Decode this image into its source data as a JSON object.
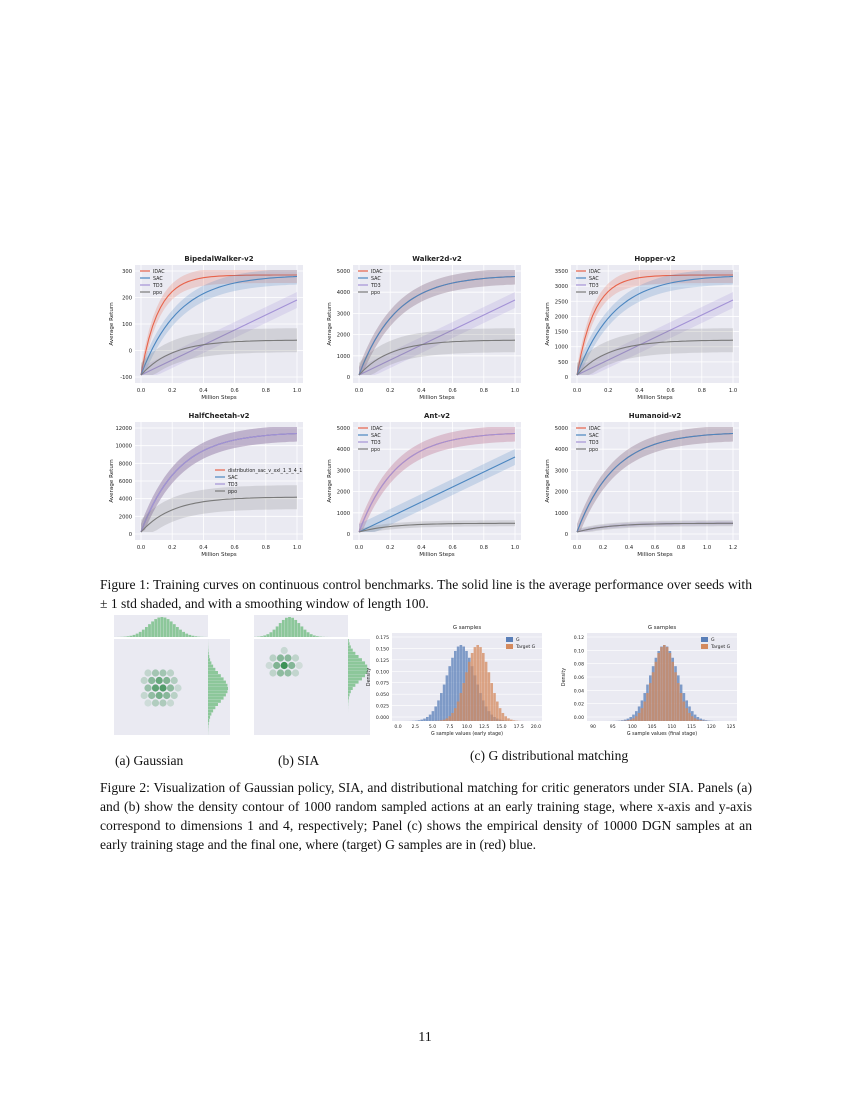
{
  "figure1": {
    "panels": [
      {
        "title": "BipedalWalker-v2",
        "yticks": [
          "300",
          "200",
          "100",
          "0",
          "-100"
        ],
        "xticks": [
          "0.0",
          "0.2",
          "0.4",
          "0.6",
          "0.8",
          "1.0"
        ],
        "ylabel": "Average Return",
        "xlabel": "Million Steps",
        "legend": [
          "IDAC",
          "SAC",
          "TD3",
          "ppo"
        ]
      },
      {
        "title": "Walker2d-v2",
        "yticks": [
          "5000",
          "4000",
          "3000",
          "2000",
          "1000",
          "0"
        ],
        "xticks": [
          "0.0",
          "0.2",
          "0.4",
          "0.6",
          "0.8",
          "1.0"
        ],
        "ylabel": "Average Return",
        "xlabel": "Million Steps",
        "legend": [
          "IDAC",
          "SAC",
          "TD3",
          "ppo"
        ]
      },
      {
        "title": "Hopper-v2",
        "yticks": [
          "3500",
          "3000",
          "2500",
          "2000",
          "1500",
          "1000",
          "500",
          "0"
        ],
        "xticks": [
          "0.0",
          "0.2",
          "0.4",
          "0.6",
          "0.8",
          "1.0"
        ],
        "ylabel": "Average Return",
        "xlabel": "Million Steps",
        "legend": [
          "IDAC",
          "SAC",
          "TD3",
          "ppo"
        ]
      },
      {
        "title": "HalfCheetah-v2",
        "yticks": [
          "12000",
          "10000",
          "8000",
          "6000",
          "4000",
          "2000",
          "0"
        ],
        "xticks": [
          "0.0",
          "0.2",
          "0.4",
          "0.6",
          "0.8",
          "1.0"
        ],
        "ylabel": "Average Return",
        "xlabel": "Million Steps",
        "legend": [
          "distribution_sac_v_xxl_1_3_4_1",
          "SAC",
          "TD3",
          "ppo"
        ]
      },
      {
        "title": "Ant-v2",
        "yticks": [
          "5000",
          "4000",
          "3000",
          "2000",
          "1000",
          "0"
        ],
        "xticks": [
          "0.0",
          "0.2",
          "0.4",
          "0.6",
          "0.8",
          "1.0"
        ],
        "ylabel": "Average Return",
        "xlabel": "Million Steps",
        "legend": [
          "IDAC",
          "SAC",
          "TD3",
          "ppo"
        ]
      },
      {
        "title": "Humanoid-v2",
        "yticks": [
          "5000",
          "4000",
          "3000",
          "2000",
          "1000",
          "0"
        ],
        "xticks": [
          "0.0",
          "0.2",
          "0.4",
          "0.6",
          "0.8",
          "1.0",
          "1.2"
        ],
        "ylabel": "Average Return",
        "xlabel": "Million Steps",
        "legend": [
          "IDAC",
          "SAC",
          "TD3",
          "ppo"
        ]
      }
    ],
    "caption": "Figure 1: Training curves on continuous control benchmarks. The solid line is the average performance over seeds with ± 1 std shaded, and with a smoothing window of length 100."
  },
  "figure2": {
    "sub_a": "(a) Gaussian",
    "sub_b": "(b) SIA",
    "sub_c": "(c) G distributional matching",
    "hist1": {
      "title": "G samples",
      "xlabel": "G sample values (early stage)",
      "ylabel": "Density",
      "xticks": [
        "0.0",
        "2.5",
        "5.0",
        "7.5",
        "10.0",
        "12.5",
        "15.0",
        "17.5",
        "20.0"
      ],
      "yticks": [
        "0.175",
        "0.150",
        "0.125",
        "0.100",
        "0.075",
        "0.050",
        "0.025",
        "0.000"
      ],
      "legend": [
        "G",
        "Target G"
      ]
    },
    "hist2": {
      "title": "G samples",
      "xlabel": "G sample values (final stage)",
      "ylabel": "Density",
      "xticks": [
        "90",
        "95",
        "100",
        "105",
        "110",
        "115",
        "120",
        "125"
      ],
      "yticks": [
        "0.12",
        "0.10",
        "0.08",
        "0.06",
        "0.04",
        "0.02",
        "0.00"
      ],
      "legend": [
        "G",
        "Target G"
      ]
    },
    "caption": "Figure 2: Visualization of Gaussian policy, SIA, and distributional matching for critic generators under SIA. Panels (a) and (b) show the density contour of 1000 random sampled actions at an early training stage, where x-axis and y-axis correspond to dimensions 1 and 4, respectively; Panel (c) shows the empirical density of 10000 DGN samples at an early training stage and the final one, where (target) G samples are in (red) blue."
  },
  "page_number": "11",
  "colors": {
    "idac": "#e8634a",
    "sac": "#4b86c0",
    "td3": "#a392d6",
    "ppo": "#7a7a7a",
    "hist_g": "#5a7fb8",
    "hist_target": "#d48a5e",
    "hex": "#2f8a4a"
  }
}
